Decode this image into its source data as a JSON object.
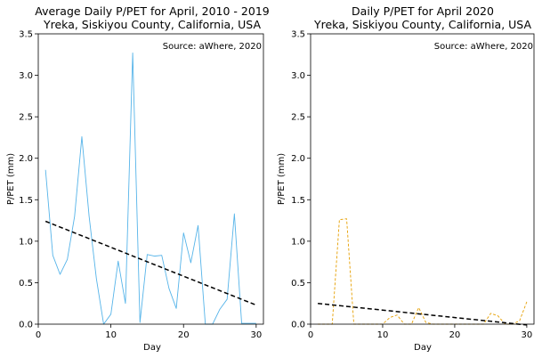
{
  "chart_data": [
    {
      "type": "line",
      "title_line1": "Average Daily P/PET for April, 2010 - 2019",
      "title_line2": "Yreka, Siskiyou County, California, USA",
      "annotation": "Source: aWhere, 2020",
      "xlabel": "Day",
      "ylabel": "P/PET (mm)",
      "xlim": [
        0,
        31
      ],
      "ylim": [
        0,
        3.5
      ],
      "xticks": [
        0,
        10,
        20,
        30
      ],
      "yticks": [
        "0.0",
        "0.5",
        "1.0",
        "1.5",
        "2.0",
        "2.5",
        "3.0",
        "3.5"
      ],
      "series": [
        {
          "style": "solid",
          "color": "#56b4e9",
          "x": [
            1,
            2,
            3,
            4,
            5,
            6,
            7,
            8,
            9,
            10,
            11,
            12,
            13,
            14,
            15,
            16,
            17,
            18,
            19,
            20,
            21,
            22,
            23,
            24,
            25,
            26,
            27,
            28,
            29,
            30
          ],
          "y": [
            1.86,
            0.83,
            0.6,
            0.78,
            1.3,
            2.26,
            1.3,
            0.55,
            0.0,
            0.12,
            0.76,
            0.25,
            3.27,
            0.02,
            0.84,
            0.82,
            0.83,
            0.43,
            0.19,
            1.1,
            0.74,
            1.19,
            0.0,
            0.0,
            0.18,
            0.3,
            1.33,
            0.01,
            0.01,
            0.01
          ]
        },
        {
          "style": "dashed",
          "color": "#000000",
          "x": [
            1,
            30
          ],
          "y": [
            1.24,
            0.23
          ]
        }
      ]
    },
    {
      "type": "line",
      "title_line1": "Daily P/PET for April 2020",
      "title_line2": "Yreka, Siskiyou County, California, USA",
      "annotation": "Source: aWhere, 2020",
      "xlabel": "Day",
      "ylabel": "P/PET (mm)",
      "xlim": [
        0,
        31
      ],
      "ylim": [
        0,
        3.5
      ],
      "xticks": [
        0,
        10,
        20,
        30
      ],
      "yticks": [
        "0.0",
        "0.5",
        "1.0",
        "1.5",
        "2.0",
        "2.5",
        "3.0",
        "3.5"
      ],
      "series": [
        {
          "style": "dashed",
          "color": "#e69f00",
          "x": [
            1,
            2,
            3,
            4,
            5,
            6,
            7,
            8,
            9,
            10,
            11,
            12,
            13,
            14,
            15,
            16,
            17,
            18,
            19,
            20,
            21,
            22,
            23,
            24,
            25,
            26,
            27,
            28,
            29,
            30
          ],
          "y": [
            0,
            0,
            0,
            1.26,
            1.27,
            0,
            0,
            0,
            0,
            0,
            0.08,
            0.11,
            0,
            0,
            0.2,
            0.02,
            0,
            0,
            0,
            0,
            0,
            0,
            0,
            0,
            0.13,
            0.1,
            0,
            0,
            0.04,
            0.27
          ]
        },
        {
          "style": "dashed",
          "color": "#000000",
          "x": [
            1,
            30
          ],
          "y": [
            0.25,
            -0.01
          ]
        }
      ]
    }
  ]
}
